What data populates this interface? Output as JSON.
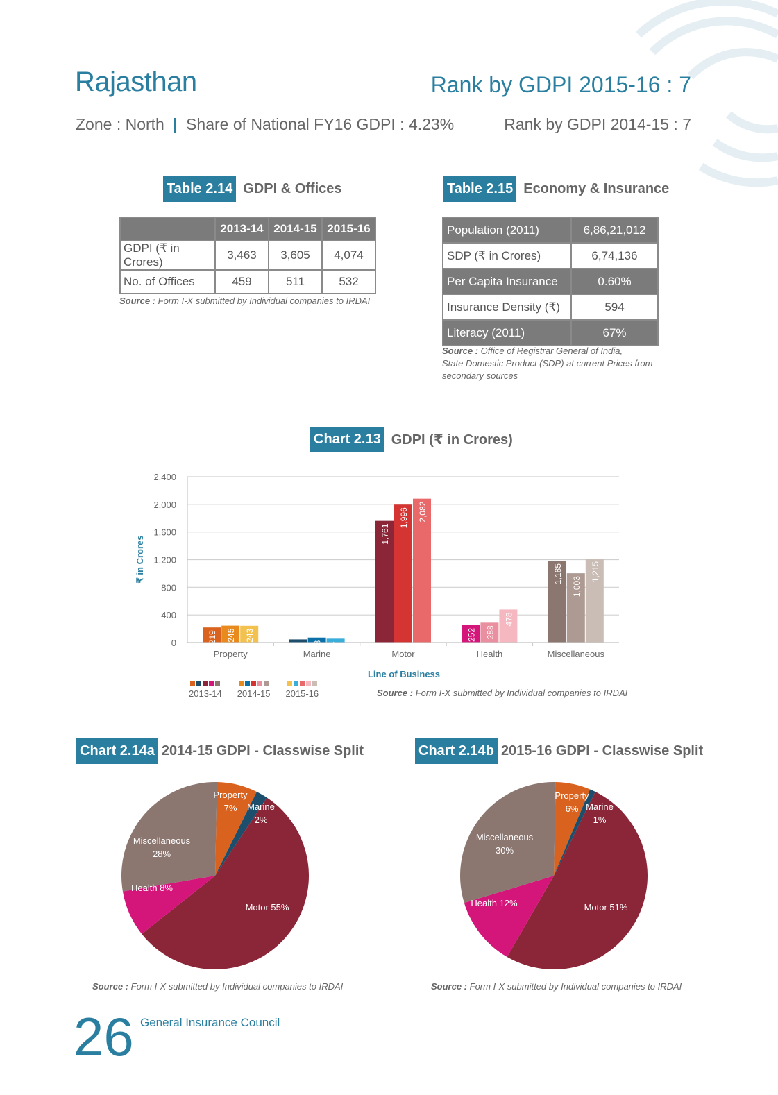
{
  "header": {
    "state": "Rajasthan",
    "rank_current": "Rank by GDPI 2015-16 : 7",
    "zone": "Zone : North",
    "separator": "|",
    "share": "Share of National FY16 GDPI : 4.23%",
    "rank_previous": "Rank by GDPI 2014-15 : 7"
  },
  "table_2_14": {
    "tag": "Table 2.14",
    "title": "GDPI & Offices",
    "headers": [
      "",
      "2013-14",
      "2014-15",
      "2015-16"
    ],
    "rows": [
      {
        "label": "GDPI (₹ in Crores)",
        "values": [
          "3,463",
          "3,605",
          "4,074"
        ]
      },
      {
        "label": "No. of Offices",
        "values": [
          "459",
          "511",
          "532"
        ]
      }
    ],
    "source_label": "Source :",
    "source_text": "Form I-X submitted by Individual companies to IRDAI"
  },
  "table_2_15": {
    "tag": "Table 2.15",
    "title": "Economy & Insurance",
    "rows": [
      {
        "label": "Population (2011)",
        "value": "6,86,21,012"
      },
      {
        "label": "SDP (₹ in Crores)",
        "value": "6,74,136"
      },
      {
        "label": "Per Capita Insurance",
        "value": "0.60%"
      },
      {
        "label": "Insurance Density (₹)",
        "value": "594"
      },
      {
        "label": "Literacy (2011)",
        "value": "67%"
      }
    ],
    "source_label": "Source :",
    "source_line1": "Office of Registrar General of India,",
    "source_line2": "State Domestic Product (SDP) at current Prices from",
    "source_line3": "secondary sources"
  },
  "chart_2_13": {
    "tag": "Chart 2.13",
    "title": "GDPI (₹ in Crores)",
    "source_label": "Source :",
    "source_text": "Form I-X submitted by Individual companies to IRDAI"
  },
  "chart_2_14a": {
    "tag": "Chart 2.14a",
    "title": "2014-15 GDPI - Classwise Split",
    "source_label": "Source :",
    "source_text": "Form I-X submitted by Individual companies to IRDAI"
  },
  "chart_2_14b": {
    "tag": "Chart 2.14b",
    "title": "2015-16 GDPI - Classwise Split",
    "source_label": "Source :",
    "source_text": "Form I-X submitted by Individual companies to IRDAI"
  },
  "chart_data": [
    {
      "type": "bar",
      "categories": [
        "Property",
        "Marine",
        "Motor",
        "Health",
        "Miscellaneous"
      ],
      "series": [
        {
          "name": "2013-14",
          "values": [
            219,
            46,
            1761,
            252,
            1185
          ]
        },
        {
          "name": "2014-15",
          "values": [
            245,
            73,
            1996,
            288,
            1003
          ]
        },
        {
          "name": "2015-16",
          "values": [
            243,
            57,
            2082,
            478,
            1215
          ]
        }
      ],
      "colors": [
        [
          "#d9621e",
          "#1d4e6b",
          "#8b2638",
          "#d4167a",
          "#8c7670"
        ],
        [
          "#e98a1f",
          "#0c6fa6",
          "#d43533",
          "#e98fa0",
          "#ad9a93"
        ],
        [
          "#f2c14e",
          "#3aaedb",
          "#e9686a",
          "#f5b8c0",
          "#c9bdb5"
        ]
      ],
      "xlabel": "Line of Business",
      "ylabel": "₹ in Crores",
      "ylim": [
        0,
        2400
      ],
      "yticks": [
        "0",
        "400",
        "800",
        "1,200",
        "1,600",
        "2,000",
        "2,400"
      ],
      "legend": "bottom-left",
      "grid": true
    },
    {
      "type": "pie",
      "labels": [
        "Property",
        "Marine",
        "Motor",
        "Health",
        "Miscellaneous"
      ],
      "values": [
        7,
        2,
        55,
        8,
        28
      ],
      "slice_labels": [
        "Property\n7%",
        "Marine\n2%",
        "Motor 55%",
        "Health 8%",
        "Miscellaneous\n28%"
      ],
      "colors": [
        "#d9621e",
        "#1d4e6b",
        "#8b2638",
        "#d4167a",
        "#8c7670"
      ]
    },
    {
      "type": "pie",
      "labels": [
        "Property",
        "Marine",
        "Motor",
        "Health",
        "Miscellaneous"
      ],
      "values": [
        6,
        1,
        51,
        12,
        30
      ],
      "slice_labels": [
        "Property\n6%",
        "Marine\n1%",
        "Motor 51%",
        "Health 12%",
        "Miscellaneous\n30%"
      ],
      "colors": [
        "#d9621e",
        "#1d4e6b",
        "#8b2638",
        "#d4167a",
        "#8c7670"
      ]
    }
  ],
  "footer": {
    "page_number": "26",
    "publisher": "General Insurance Council"
  }
}
